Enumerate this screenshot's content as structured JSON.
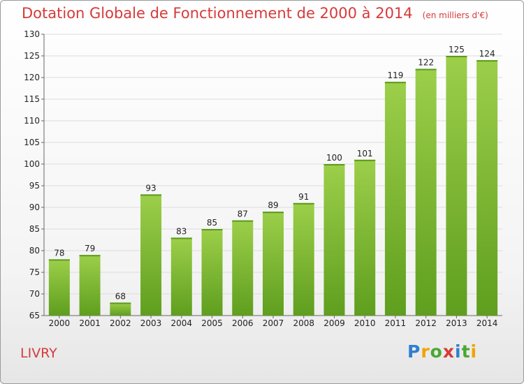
{
  "title": "Dotation Globale de Fonctionnement de 2000 à 2014",
  "subtitle": "(en milliers d'€)",
  "commune": "LIVRY",
  "logo": {
    "letters": [
      "P",
      "r",
      "o",
      "x",
      "i",
      "t",
      "i"
    ],
    "colors": [
      "#2f7fd0",
      "#f2a200",
      "#4aa832",
      "#d63a3a",
      "#2f7fd0",
      "#4aa832",
      "#f2a200"
    ]
  },
  "colors": {
    "bar": "#8cc43c",
    "bar_dark": "#5c9a1c",
    "title": "#d63a3a"
  },
  "chart_data": {
    "type": "bar",
    "categories": [
      "2000",
      "2001",
      "2002",
      "2003",
      "2004",
      "2005",
      "2006",
      "2007",
      "2008",
      "2009",
      "2010",
      "2011",
      "2012",
      "2013",
      "2014"
    ],
    "values": [
      78,
      79,
      68,
      93,
      83,
      85,
      87,
      89,
      91,
      100,
      101,
      119,
      122,
      125,
      124
    ],
    "ylim": [
      65,
      130
    ],
    "yticks": [
      65,
      70,
      75,
      80,
      85,
      90,
      95,
      100,
      105,
      110,
      115,
      120,
      125,
      130
    ],
    "grid": true,
    "legend": "none"
  }
}
